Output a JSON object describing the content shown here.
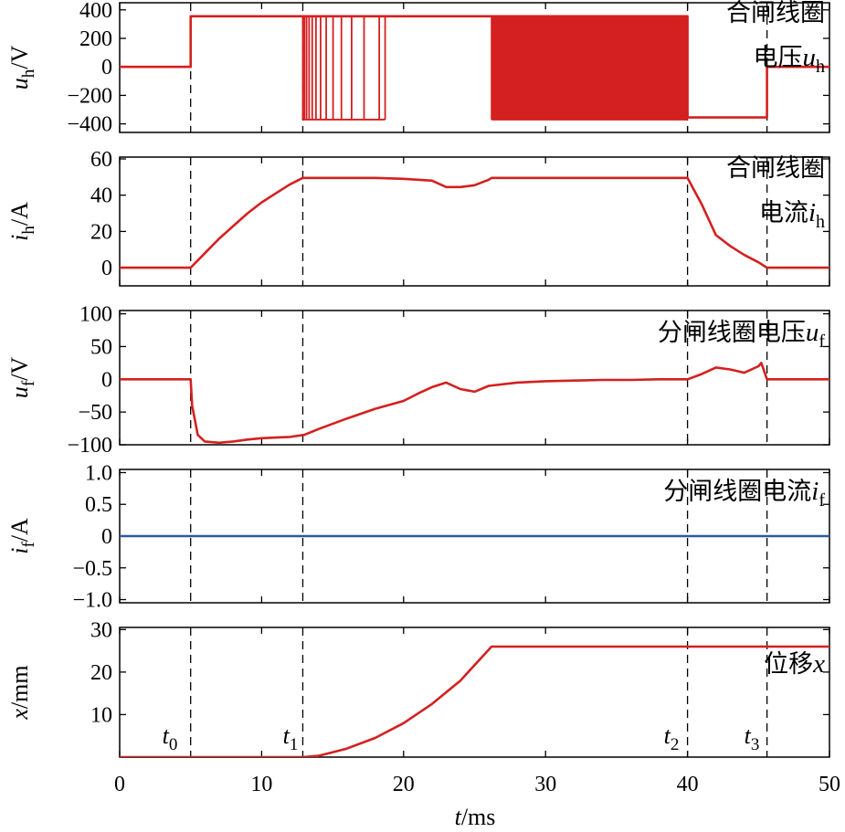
{
  "chart_data": [
    {
      "type": "line",
      "ylabel": {
        "var": "u",
        "sub": "h",
        "unit": "/V"
      },
      "yticks": [
        "400",
        "200",
        "0",
        "−200",
        "−400"
      ],
      "ytick_values": [
        400,
        200,
        0,
        -200,
        -400
      ],
      "ylim": [
        -460,
        450
      ],
      "annotation_lines": [
        {
          "text": "合闸线圈"
        },
        {
          "text": "电压",
          "var": "u",
          "sub": "h"
        }
      ],
      "series": [
        {
          "color": "#d42020",
          "x": [
            0,
            5.0,
            5.0,
            12.9,
            12.9,
            18.7,
            18.7,
            26.2,
            26.2,
            40.0,
            40.0,
            45.6,
            45.6,
            50
          ],
          "y": [
            0,
            0,
            355,
            355,
            355,
            355,
            355,
            355,
            355,
            355,
            -355,
            -355,
            0,
            0
          ]
        }
      ],
      "bursts": [
        {
          "x0": 12.9,
          "x1": 18.7,
          "low": -370,
          "high": 350,
          "pattern": "decaying"
        },
        {
          "x0": 26.2,
          "x1": 40.0,
          "low": -370,
          "high": 350,
          "pattern": "dense"
        }
      ]
    },
    {
      "type": "line",
      "ylabel": {
        "var": "i",
        "sub": "h",
        "unit": "/A"
      },
      "yticks": [
        "60",
        "40",
        "20",
        "0"
      ],
      "ytick_values": [
        60,
        40,
        20,
        0
      ],
      "ylim": [
        -10,
        61
      ],
      "annotation_lines": [
        {
          "text": "合闸线圈"
        },
        {
          "text": "电流",
          "var": "i",
          "sub": "h"
        }
      ],
      "series": [
        {
          "color": "#d42020",
          "x": [
            0,
            5.0,
            6,
            7,
            8,
            9,
            10,
            11,
            12,
            12.9,
            14,
            16,
            18,
            20,
            22,
            23,
            24,
            25,
            26,
            26.2,
            28,
            30,
            32,
            34,
            36,
            38,
            40.0,
            41,
            42,
            43,
            44,
            45,
            45.6,
            50
          ],
          "y": [
            0,
            0,
            8,
            16,
            23,
            30,
            36,
            41,
            46,
            49.5,
            49.5,
            49.5,
            49.5,
            49,
            48,
            44.5,
            44.5,
            45.5,
            48.5,
            49.5,
            49.5,
            49.5,
            49.5,
            49.5,
            49.5,
            49.5,
            49.5,
            35,
            18,
            12,
            7,
            3,
            0,
            0
          ]
        }
      ]
    },
    {
      "type": "line",
      "ylabel": {
        "var": "u",
        "sub": "f",
        "unit": "/V"
      },
      "yticks": [
        "100",
        "50",
        "0",
        "−50",
        "−100"
      ],
      "ytick_values": [
        100,
        50,
        0,
        -50,
        -100
      ],
      "ylim": [
        -100,
        105
      ],
      "annotation_lines": [
        {
          "text": "分闸线圈电压",
          "var": "u",
          "sub": "f"
        }
      ],
      "series": [
        {
          "color": "#d42020",
          "x": [
            0,
            5.0,
            5.1,
            5.5,
            6,
            7,
            8,
            9,
            10,
            11,
            12,
            13,
            14,
            16,
            18,
            20,
            21,
            22,
            23,
            24,
            25,
            26,
            28,
            30,
            32,
            34,
            36,
            38,
            40,
            41,
            42,
            43,
            44,
            45,
            45.2,
            45.6,
            50
          ],
          "y": [
            0,
            0,
            -40,
            -85,
            -95,
            -97,
            -95,
            -92,
            -90,
            -89,
            -88,
            -85,
            -76,
            -60,
            -45,
            -33,
            -22,
            -12,
            -5,
            -15,
            -19,
            -10,
            -5,
            -3,
            -2,
            -1,
            -1,
            0,
            0,
            8,
            18,
            15,
            10,
            20,
            25,
            0,
            0
          ]
        }
      ]
    },
    {
      "type": "line",
      "ylabel": {
        "var": "i",
        "sub": "f",
        "unit": "/A"
      },
      "yticks": [
        "1.0",
        "0.5",
        "0",
        "−0.5",
        "−1.0"
      ],
      "ytick_values": [
        1.0,
        0.5,
        0,
        -0.5,
        -1.0
      ],
      "ylim": [
        -1.05,
        1.05
      ],
      "annotation_lines": [
        {
          "text": "分闸线圈电流",
          "var": "i",
          "sub": "f"
        }
      ],
      "series": [
        {
          "color": "#2c5aa0",
          "x": [
            0,
            50
          ],
          "y": [
            0,
            0
          ]
        }
      ]
    },
    {
      "type": "line",
      "ylabel": {
        "var": "x",
        "sub": "",
        "unit": "/mm"
      },
      "yticks": [
        "30",
        "20",
        "10"
      ],
      "ytick_values": [
        30,
        20,
        10
      ],
      "ylim": [
        0,
        30.5
      ],
      "annotation_lines": [
        {
          "text": "位移",
          "var": "x",
          "sub": ""
        }
      ],
      "series": [
        {
          "color": "#d42020",
          "x": [
            0,
            12.9,
            14,
            16,
            18,
            20,
            22,
            24,
            26.2,
            50
          ],
          "y": [
            0,
            0,
            0.3,
            2,
            4.5,
            8,
            12.5,
            18,
            26,
            26
          ]
        }
      ]
    }
  ],
  "xaxis": {
    "label_var": "t",
    "label_unit": "/ms",
    "ticks": [
      "0",
      "10",
      "20",
      "30",
      "40",
      "50"
    ],
    "tick_values": [
      0,
      10,
      20,
      30,
      40,
      50
    ],
    "xlim": [
      0,
      50
    ]
  },
  "markers": [
    {
      "x": 5.0,
      "label": "t",
      "sub": "0"
    },
    {
      "x": 12.9,
      "label": "t",
      "sub": "1"
    },
    {
      "x": 40.0,
      "label": "t",
      "sub": "2"
    },
    {
      "x": 45.6,
      "label": "t",
      "sub": "3"
    }
  ]
}
